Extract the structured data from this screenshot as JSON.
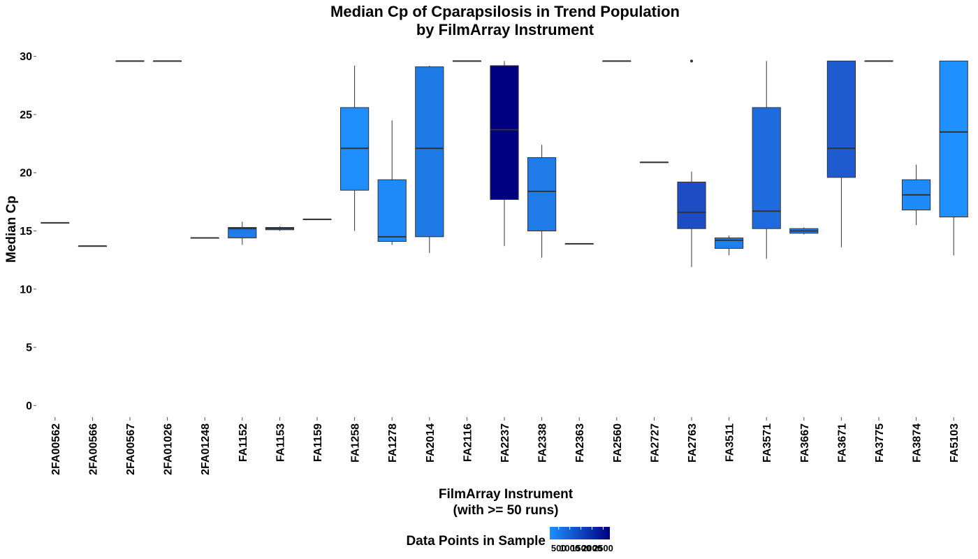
{
  "chart_data": {
    "type": "box",
    "title": [
      "Median Cp of Cparapsilosis in Trend Population",
      "by FilmArray Instrument"
    ],
    "xlabel": [
      "FilmArray Instrument",
      "(with >= 50 runs)"
    ],
    "ylabel": "Median Cp",
    "ylim": [
      -1,
      31
    ],
    "yticks": [
      0,
      5,
      10,
      15,
      20,
      25,
      30
    ],
    "grid": false,
    "legend": {
      "title": "Data Points in Sample",
      "position": "bottom",
      "labels": [
        "500",
        "1000",
        "1500",
        "2000",
        "2500"
      ],
      "range": [
        100,
        2800
      ],
      "low_color": "#1E90FF",
      "high_color": "#000080"
    },
    "boxes": [
      {
        "instrument": "2FA00562",
        "min": 15.7,
        "q1": 15.7,
        "median": 15.7,
        "q3": 15.7,
        "max": 15.7,
        "n": 100,
        "color": "#1E90FF",
        "outliers": []
      },
      {
        "instrument": "2FA00566",
        "min": 13.7,
        "q1": 13.7,
        "median": 13.7,
        "q3": 13.7,
        "max": 13.7,
        "n": 100,
        "color": "#1E90FF",
        "outliers": []
      },
      {
        "instrument": "2FA00567",
        "min": 29.6,
        "q1": 29.6,
        "median": 29.6,
        "q3": 29.6,
        "max": 29.6,
        "n": 100,
        "color": "#1E90FF",
        "outliers": []
      },
      {
        "instrument": "2FA01026",
        "min": 29.6,
        "q1": 29.6,
        "median": 29.6,
        "q3": 29.6,
        "max": 29.6,
        "n": 100,
        "color": "#1E90FF",
        "outliers": []
      },
      {
        "instrument": "2FA01248",
        "min": 14.4,
        "q1": 14.4,
        "median": 14.4,
        "q3": 14.4,
        "max": 14.4,
        "n": 100,
        "color": "#1E90FF",
        "outliers": []
      },
      {
        "instrument": "FA1152",
        "min": 13.8,
        "q1": 14.4,
        "median": 15.2,
        "q3": 15.3,
        "max": 15.8,
        "n": 800,
        "color": "#1E7BE8",
        "outliers": []
      },
      {
        "instrument": "FA1153",
        "min": 15.0,
        "q1": 15.1,
        "median": 15.2,
        "q3": 15.3,
        "max": 15.4,
        "n": 100,
        "color": "#1E90FF",
        "outliers": []
      },
      {
        "instrument": "FA1159",
        "min": 16.0,
        "q1": 16.0,
        "median": 16.0,
        "q3": 16.0,
        "max": 16.0,
        "n": 100,
        "color": "#1E90FF",
        "outliers": []
      },
      {
        "instrument": "FA1258",
        "min": 15.0,
        "q1": 18.5,
        "median": 22.1,
        "q3": 25.6,
        "max": 29.2,
        "n": 200,
        "color": "#1E8EFC",
        "outliers": []
      },
      {
        "instrument": "FA1278",
        "min": 13.8,
        "q1": 14.1,
        "median": 14.5,
        "q3": 19.4,
        "max": 24.5,
        "n": 300,
        "color": "#1E8BF8",
        "outliers": []
      },
      {
        "instrument": "FA2014",
        "min": 13.1,
        "q1": 14.5,
        "median": 22.1,
        "q3": 29.1,
        "max": 29.2,
        "n": 900,
        "color": "#1E7AE6",
        "outliers": []
      },
      {
        "instrument": "FA2116",
        "min": 29.6,
        "q1": 29.6,
        "median": 29.6,
        "q3": 29.6,
        "max": 29.6,
        "n": 100,
        "color": "#1E90FF",
        "outliers": []
      },
      {
        "instrument": "FA2237",
        "min": 13.7,
        "q1": 17.7,
        "median": 23.7,
        "q3": 29.2,
        "max": 29.6,
        "n": 2800,
        "color": "#000080",
        "outliers": []
      },
      {
        "instrument": "FA2338",
        "min": 12.7,
        "q1": 15.0,
        "median": 18.4,
        "q3": 21.3,
        "max": 22.4,
        "n": 800,
        "color": "#1E7BE8",
        "outliers": []
      },
      {
        "instrument": "FA2363",
        "min": 13.9,
        "q1": 13.9,
        "median": 13.9,
        "q3": 13.9,
        "max": 13.9,
        "n": 100,
        "color": "#1E90FF",
        "outliers": []
      },
      {
        "instrument": "FA2560",
        "min": 29.6,
        "q1": 29.6,
        "median": 29.6,
        "q3": 29.6,
        "max": 29.6,
        "n": 100,
        "color": "#1E90FF",
        "outliers": []
      },
      {
        "instrument": "FA2727",
        "min": 20.9,
        "q1": 20.9,
        "median": 20.9,
        "q3": 20.9,
        "max": 20.9,
        "n": 100,
        "color": "#1E90FF",
        "outliers": []
      },
      {
        "instrument": "FA2763",
        "min": 11.9,
        "q1": 15.2,
        "median": 16.6,
        "q3": 19.2,
        "max": 20.1,
        "n": 1200,
        "color": "#1E4CC4",
        "outliers": [
          29.6
        ]
      },
      {
        "instrument": "FA3511",
        "min": 12.9,
        "q1": 13.5,
        "median": 14.2,
        "q3": 14.4,
        "max": 14.6,
        "n": 600,
        "color": "#1E80EE",
        "outliers": []
      },
      {
        "instrument": "FA3571",
        "min": 12.6,
        "q1": 15.2,
        "median": 16.7,
        "q3": 25.6,
        "max": 29.6,
        "n": 800,
        "color": "#1E6BDD",
        "outliers": []
      },
      {
        "instrument": "FA3667",
        "min": 14.7,
        "q1": 14.8,
        "median": 15.0,
        "q3": 15.2,
        "max": 15.3,
        "n": 600,
        "color": "#1E80EE",
        "outliers": []
      },
      {
        "instrument": "FA3671",
        "min": 13.6,
        "q1": 19.6,
        "median": 22.1,
        "q3": 29.6,
        "max": 29.6,
        "n": 1100,
        "color": "#1E5AD0",
        "outliers": []
      },
      {
        "instrument": "FA3775",
        "min": 29.6,
        "q1": 29.6,
        "median": 29.6,
        "q3": 29.6,
        "max": 29.6,
        "n": 100,
        "color": "#1E90FF",
        "outliers": []
      },
      {
        "instrument": "FA3874",
        "min": 15.5,
        "q1": 16.8,
        "median": 18.1,
        "q3": 19.4,
        "max": 20.7,
        "n": 300,
        "color": "#1E8BF8",
        "outliers": []
      },
      {
        "instrument": "FA5103",
        "min": 12.9,
        "q1": 16.2,
        "median": 23.5,
        "q3": 29.6,
        "max": 29.6,
        "n": 100,
        "color": "#1E90FF",
        "outliers": []
      }
    ]
  }
}
